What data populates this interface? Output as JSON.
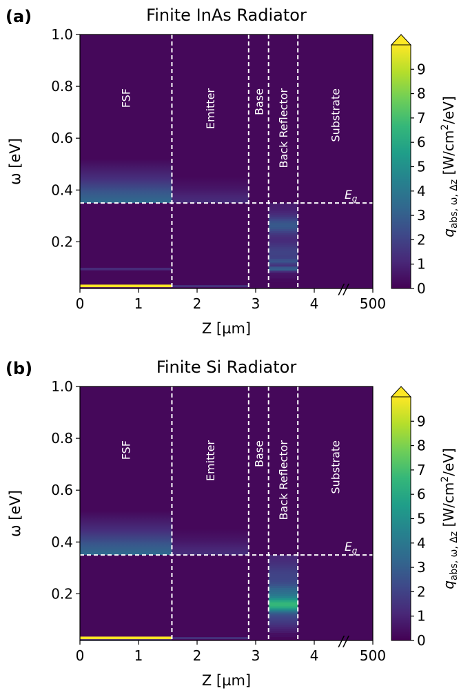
{
  "chart_data": [
    {
      "type": "heatmap",
      "panel_label": "(a)",
      "title": "Finite InAs Radiator",
      "xlabel": "Z [µm]",
      "ylabel": "ω [eV]",
      "x_tick_labels": [
        "0",
        "1",
        "2",
        "3",
        "4",
        "500"
      ],
      "y_tick_labels": [
        "0.2",
        "0.4",
        "0.6",
        "0.8",
        "1.0"
      ],
      "xlim": [
        0,
        5
      ],
      "ylim": [
        0.02,
        1.0
      ],
      "axis_break": "//",
      "layers": [
        {
          "name": "FSF",
          "z_start": 0,
          "z_end": 1.57
        },
        {
          "name": "Emitter",
          "z_start": 1.57,
          "z_end": 2.88
        },
        {
          "name": "Base",
          "z_start": 2.88,
          "z_end": 3.22
        },
        {
          "name": "Back Reflector",
          "z_start": 3.22,
          "z_end": 3.72
        },
        {
          "name": "Substrate",
          "z_start": 3.72,
          "z_end": 5
        }
      ],
      "bandgap": {
        "label": "E_g",
        "omega": 0.35
      },
      "colorbar": {
        "label": "q_abs,ω,Δz [W/cm²/eV]",
        "min": 0,
        "max": 10,
        "ticks": [
          0,
          1,
          2,
          3,
          4,
          5,
          6,
          7,
          8,
          9
        ],
        "extend": "max",
        "colormap": "viridis"
      },
      "features": [
        {
          "z": [
            0,
            1.57
          ],
          "omega": [
            0.35,
            0.52
          ],
          "value": 3.5,
          "profile": "decay_up"
        },
        {
          "z": [
            1.57,
            2.88
          ],
          "omega": [
            0.35,
            0.45
          ],
          "value": 1.3,
          "profile": "decay_up"
        },
        {
          "z": [
            0,
            1.57
          ],
          "omega": [
            0.025,
            0.035
          ],
          "value": 10,
          "profile": "flat"
        },
        {
          "z": [
            0,
            1.57
          ],
          "omega": [
            0.09,
            0.1
          ],
          "value": 1.2,
          "profile": "flat"
        },
        {
          "z": [
            1.57,
            2.88
          ],
          "omega": [
            0.025,
            0.033
          ],
          "value": 1.4,
          "profile": "flat"
        },
        {
          "z": [
            3.22,
            3.72
          ],
          "omega": [
            0.045,
            0.35
          ],
          "value": 2,
          "profile": "radiator_a"
        }
      ]
    },
    {
      "type": "heatmap",
      "panel_label": "(b)",
      "title": "Finite Si Radiator",
      "xlabel": "Z [µm]",
      "ylabel": "ω [eV]",
      "x_tick_labels": [
        "0",
        "1",
        "2",
        "3",
        "4",
        "500"
      ],
      "y_tick_labels": [
        "0.2",
        "0.4",
        "0.6",
        "0.8",
        "1.0"
      ],
      "xlim": [
        0,
        5
      ],
      "ylim": [
        0.02,
        1.0
      ],
      "axis_break": "//",
      "layers": [
        {
          "name": "FSF",
          "z_start": 0,
          "z_end": 1.57
        },
        {
          "name": "Emitter",
          "z_start": 1.57,
          "z_end": 2.88
        },
        {
          "name": "Base",
          "z_start": 2.88,
          "z_end": 3.22
        },
        {
          "name": "Back Reflector",
          "z_start": 3.22,
          "z_end": 3.72
        },
        {
          "name": "Substrate",
          "z_start": 3.72,
          "z_end": 5
        }
      ],
      "bandgap": {
        "label": "E_g",
        "omega": 0.35
      },
      "colorbar": {
        "label": "q_abs,ω,Δz [W/cm²/eV]",
        "min": 0,
        "max": 10,
        "ticks": [
          0,
          1,
          2,
          3,
          4,
          5,
          6,
          7,
          8,
          9
        ],
        "extend": "max",
        "colormap": "viridis"
      },
      "features": [
        {
          "z": [
            0,
            1.57
          ],
          "omega": [
            0.35,
            0.52
          ],
          "value": 3.5,
          "profile": "decay_up"
        },
        {
          "z": [
            1.57,
            2.88
          ],
          "omega": [
            0.35,
            0.45
          ],
          "value": 1.3,
          "profile": "decay_up"
        },
        {
          "z": [
            0,
            1.57
          ],
          "omega": [
            0.025,
            0.035
          ],
          "value": 10,
          "profile": "flat"
        },
        {
          "z": [
            0,
            1.57
          ],
          "omega": [
            0.018,
            0.024
          ],
          "value": 1.8,
          "profile": "flat"
        },
        {
          "z": [
            1.57,
            2.88
          ],
          "omega": [
            0.025,
            0.033
          ],
          "value": 1.4,
          "profile": "flat"
        },
        {
          "z": [
            3.22,
            3.72
          ],
          "omega": [
            0.035,
            0.35
          ],
          "value": 3,
          "profile": "radiator_b"
        }
      ]
    }
  ]
}
